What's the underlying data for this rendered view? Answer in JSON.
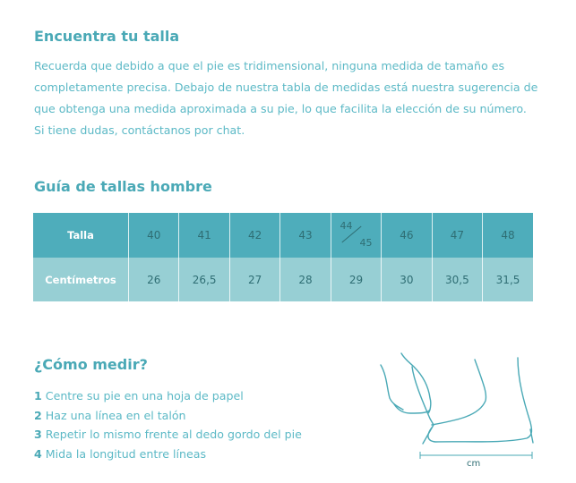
{
  "intro": {
    "title": "Encuentra tu talla",
    "lines": [
      "Recuerda que debido a que el pie es tridimensional, ninguna medida de tamaño es",
      "completamente precisa. Debajo de nuestra tabla de medidas está nuestra sugerencia de",
      "que obtenga una medida aproximada a su pie, lo que facilita la elección de su número.",
      "Si tiene dudas, contáctanos por chat."
    ]
  },
  "guide": {
    "title": "Guía de tallas hombre",
    "size_label": "Talla",
    "sizes": [
      "40",
      "41",
      "42",
      "43",
      "44/45",
      "46",
      "47",
      "48"
    ],
    "size_fraction": {
      "top": "44",
      "bottom": "45"
    },
    "cm_label": "Centímetros",
    "cms": [
      "26",
      "26,5",
      "27",
      "28",
      "29",
      "30",
      "30,5",
      "31,5"
    ]
  },
  "measure": {
    "title": "¿Cómo medir?",
    "steps": [
      {
        "n": "1",
        "text": "Centre su pie en una hoja de papel"
      },
      {
        "n": "2",
        "text": "Haz una línea en el talón"
      },
      {
        "n": "3",
        "text": "Repetir lo mismo frente al dedo gordo del pie"
      },
      {
        "n": "4",
        "text": "Mida la longitud entre líneas"
      }
    ],
    "unit": "cm"
  },
  "colors": {
    "accent": "#4aa9b6",
    "header_row": "#4eadbb",
    "data_row": "#97cfd4"
  }
}
